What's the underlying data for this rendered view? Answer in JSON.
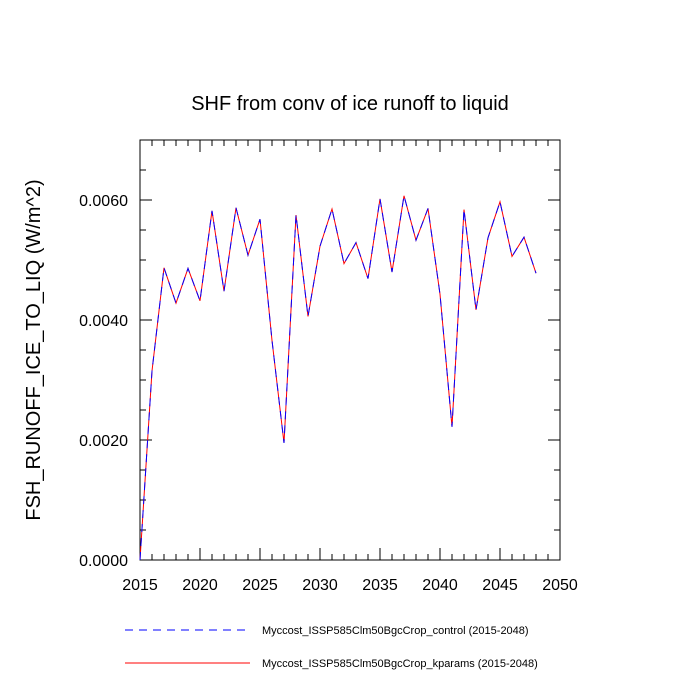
{
  "chart_data": {
    "type": "line",
    "title": "SHF from conv of ice runoff to liquid",
    "xlabel": "",
    "ylabel": "FSH_RUNOFF_ICE_TO_LIQ  (W/m^2)",
    "xlim": [
      2015,
      2050
    ],
    "ylim": [
      0.0,
      0.007
    ],
    "xticks": [
      2015,
      2020,
      2025,
      2030,
      2035,
      2040,
      2045,
      2050
    ],
    "xtick_labels": [
      "2015",
      "2020",
      "2025",
      "2030",
      "2035",
      "2040",
      "2045",
      "2050"
    ],
    "yticks": [
      0.0,
      0.002,
      0.004,
      0.006
    ],
    "ytick_labels": [
      "0.0000",
      "0.0020",
      "0.0040",
      "0.0060"
    ],
    "x": [
      2015,
      2016,
      2017,
      2018,
      2019,
      2020,
      2021,
      2022,
      2023,
      2024,
      2025,
      2026,
      2027,
      2028,
      2029,
      2030,
      2031,
      2032,
      2033,
      2034,
      2035,
      2036,
      2037,
      2038,
      2039,
      2040,
      2041,
      2042,
      2043,
      2044,
      2045,
      2046,
      2047,
      2048
    ],
    "series": [
      {
        "name": "Myccost_ISSP585Clm50BgcCrop_control (2015-2048)",
        "color": "#0000ff",
        "dash": "dashed",
        "values": [
          0.0,
          0.00315,
          0.00487,
          0.00428,
          0.00486,
          0.00432,
          0.00582,
          0.00448,
          0.00587,
          0.00508,
          0.00568,
          0.00366,
          0.00195,
          0.00575,
          0.00406,
          0.00523,
          0.00585,
          0.00494,
          0.00529,
          0.00469,
          0.00602,
          0.0048,
          0.00607,
          0.00533,
          0.00586,
          0.00443,
          0.00222,
          0.00584,
          0.00417,
          0.00537,
          0.00597,
          0.00506,
          0.00538,
          0.00478
        ]
      },
      {
        "name": "Myccost_ISSP585Clm50BgcCrop_kparams (2015-2048)",
        "color": "#ff0000",
        "dash": "solid",
        "values": [
          0.0,
          0.00315,
          0.00487,
          0.00428,
          0.00486,
          0.00432,
          0.00582,
          0.00448,
          0.00587,
          0.00508,
          0.00568,
          0.00366,
          0.00195,
          0.00575,
          0.00406,
          0.00523,
          0.00585,
          0.00494,
          0.00529,
          0.00469,
          0.00602,
          0.0048,
          0.00607,
          0.00533,
          0.00586,
          0.00443,
          0.00222,
          0.00584,
          0.00417,
          0.00537,
          0.00597,
          0.00506,
          0.00538,
          0.00478
        ]
      }
    ],
    "legend_position": "bottom"
  }
}
